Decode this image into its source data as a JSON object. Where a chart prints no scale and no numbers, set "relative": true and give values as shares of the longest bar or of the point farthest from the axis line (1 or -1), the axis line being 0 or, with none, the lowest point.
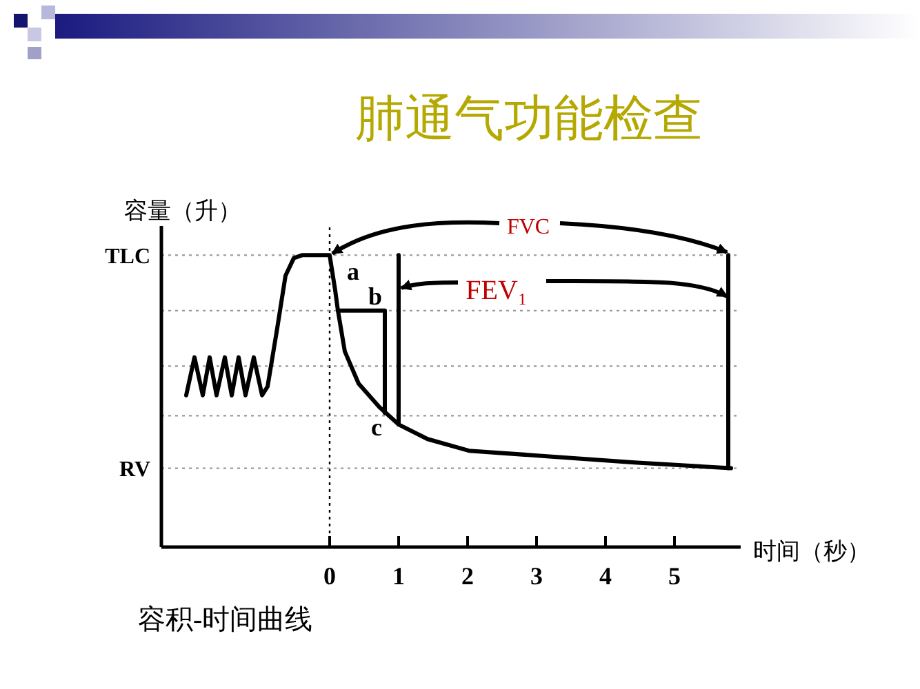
{
  "chart_data": {
    "type": "line",
    "title": "肺通气功能检查",
    "xlabel": "时间（秒）",
    "ylabel": "容量（升）",
    "relative": true,
    "xlim": [
      -2.44,
      5.96
    ],
    "xticks": [
      0,
      1,
      2,
      3,
      4,
      5
    ],
    "line_style": "solid",
    "series": [
      {
        "color": "#000000",
        "x": [
          -2.08,
          -1.96,
          -1.84,
          -1.74,
          -1.64,
          -1.52,
          -1.42,
          -1.32,
          -1.22,
          -1.1,
          -0.98,
          -0.9,
          -0.76,
          -0.64,
          -0.52,
          -0.4,
          0,
          0.08,
          0.12,
          0.22,
          0.42,
          0.72,
          1.0,
          1.42,
          2.02,
          3.22,
          4.42,
          5.82
        ],
        "values": [
          0.52,
          0.65,
          0.52,
          0.65,
          0.52,
          0.65,
          0.52,
          0.65,
          0.52,
          0.65,
          0.52,
          0.55,
          0.75,
          0.93,
          0.99,
          1.0,
          1.0,
          0.88,
          0.81,
          0.67,
          0.56,
          0.48,
          0.42,
          0.37,
          0.33,
          0.31,
          0.29,
          0.27
        ]
      },
      {
        "color": "#000000",
        "x": [
          0.12,
          0.8,
          0.8
        ],
        "values": [
          0.81,
          0.81,
          0.46
        ]
      },
      {
        "color": "#000000",
        "x": [
          1,
          1
        ],
        "values": [
          0.42,
          1.0
        ]
      },
      {
        "color": "#000000",
        "x": [
          5.78,
          5.78
        ],
        "values": [
          0.27,
          1.0
        ]
      }
    ],
    "ref_lines": [
      {
        "axis": "x",
        "value": 0,
        "label": null,
        "color": "#000000",
        "line_style": "dotted"
      },
      {
        "axis": "y",
        "value": 1.0,
        "label": "TLC",
        "color": "#999999",
        "line_style": "dotted"
      },
      {
        "axis": "y",
        "value": 0.81,
        "label": null,
        "color": "#999999",
        "line_style": "dotted"
      },
      {
        "axis": "y",
        "value": 0.62,
        "label": null,
        "color": "#999999",
        "line_style": "dotted"
      },
      {
        "axis": "y",
        "value": 0.45,
        "label": null,
        "color": "#999999",
        "line_style": "dotted"
      },
      {
        "axis": "y",
        "value": 0.27,
        "label": "RV",
        "color": "#999999",
        "line_style": "dotted"
      }
    ],
    "annotations": [
      "FVC",
      "FEV₁",
      "a",
      "b",
      "c",
      "容积-时间曲线"
    ]
  }
}
